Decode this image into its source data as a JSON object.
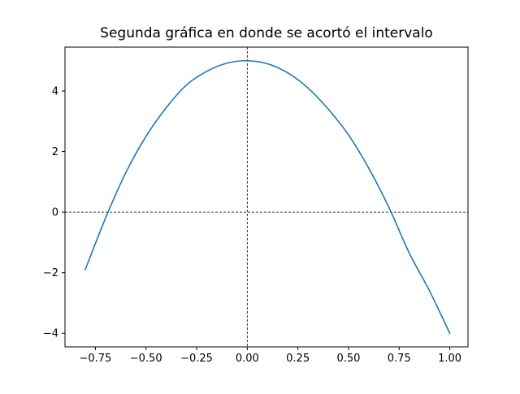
{
  "chart_data": {
    "type": "line",
    "title": "Segunda gráfica en donde se acortó el intervalo",
    "xlabel": "",
    "ylabel": "",
    "xlim": [
      -0.9,
      1.09
    ],
    "ylim": [
      -4.45,
      5.45
    ],
    "xticks": [
      -0.75,
      -0.5,
      -0.25,
      0.0,
      0.25,
      0.5,
      0.75,
      1.0
    ],
    "xtick_labels": [
      "−0.75",
      "−0.50",
      "−0.25",
      "0.00",
      "0.25",
      "0.50",
      "0.75",
      "1.00"
    ],
    "yticks": [
      -4,
      -2,
      0,
      2,
      4
    ],
    "ytick_labels": [
      "−4",
      "−2",
      "0",
      "2",
      "4"
    ],
    "grid": false,
    "reference_lines": {
      "x": 0,
      "y": 0,
      "style": "dashed",
      "color": "#000000"
    },
    "series": [
      {
        "color": "#1f77b4",
        "x": [
          -0.8,
          -0.7,
          -0.6,
          -0.5,
          -0.4,
          -0.3,
          -0.2,
          -0.1,
          0.0,
          0.1,
          0.2,
          0.3,
          0.4,
          0.5,
          0.6,
          0.7,
          0.8,
          0.9,
          1.0
        ],
        "y": [
          -1.9,
          -0.2,
          1.3,
          2.5,
          3.45,
          4.2,
          4.65,
          4.92,
          5.0,
          4.9,
          4.6,
          4.1,
          3.4,
          2.55,
          1.45,
          0.15,
          -1.35,
          -2.6,
          -4.0
        ]
      }
    ]
  }
}
